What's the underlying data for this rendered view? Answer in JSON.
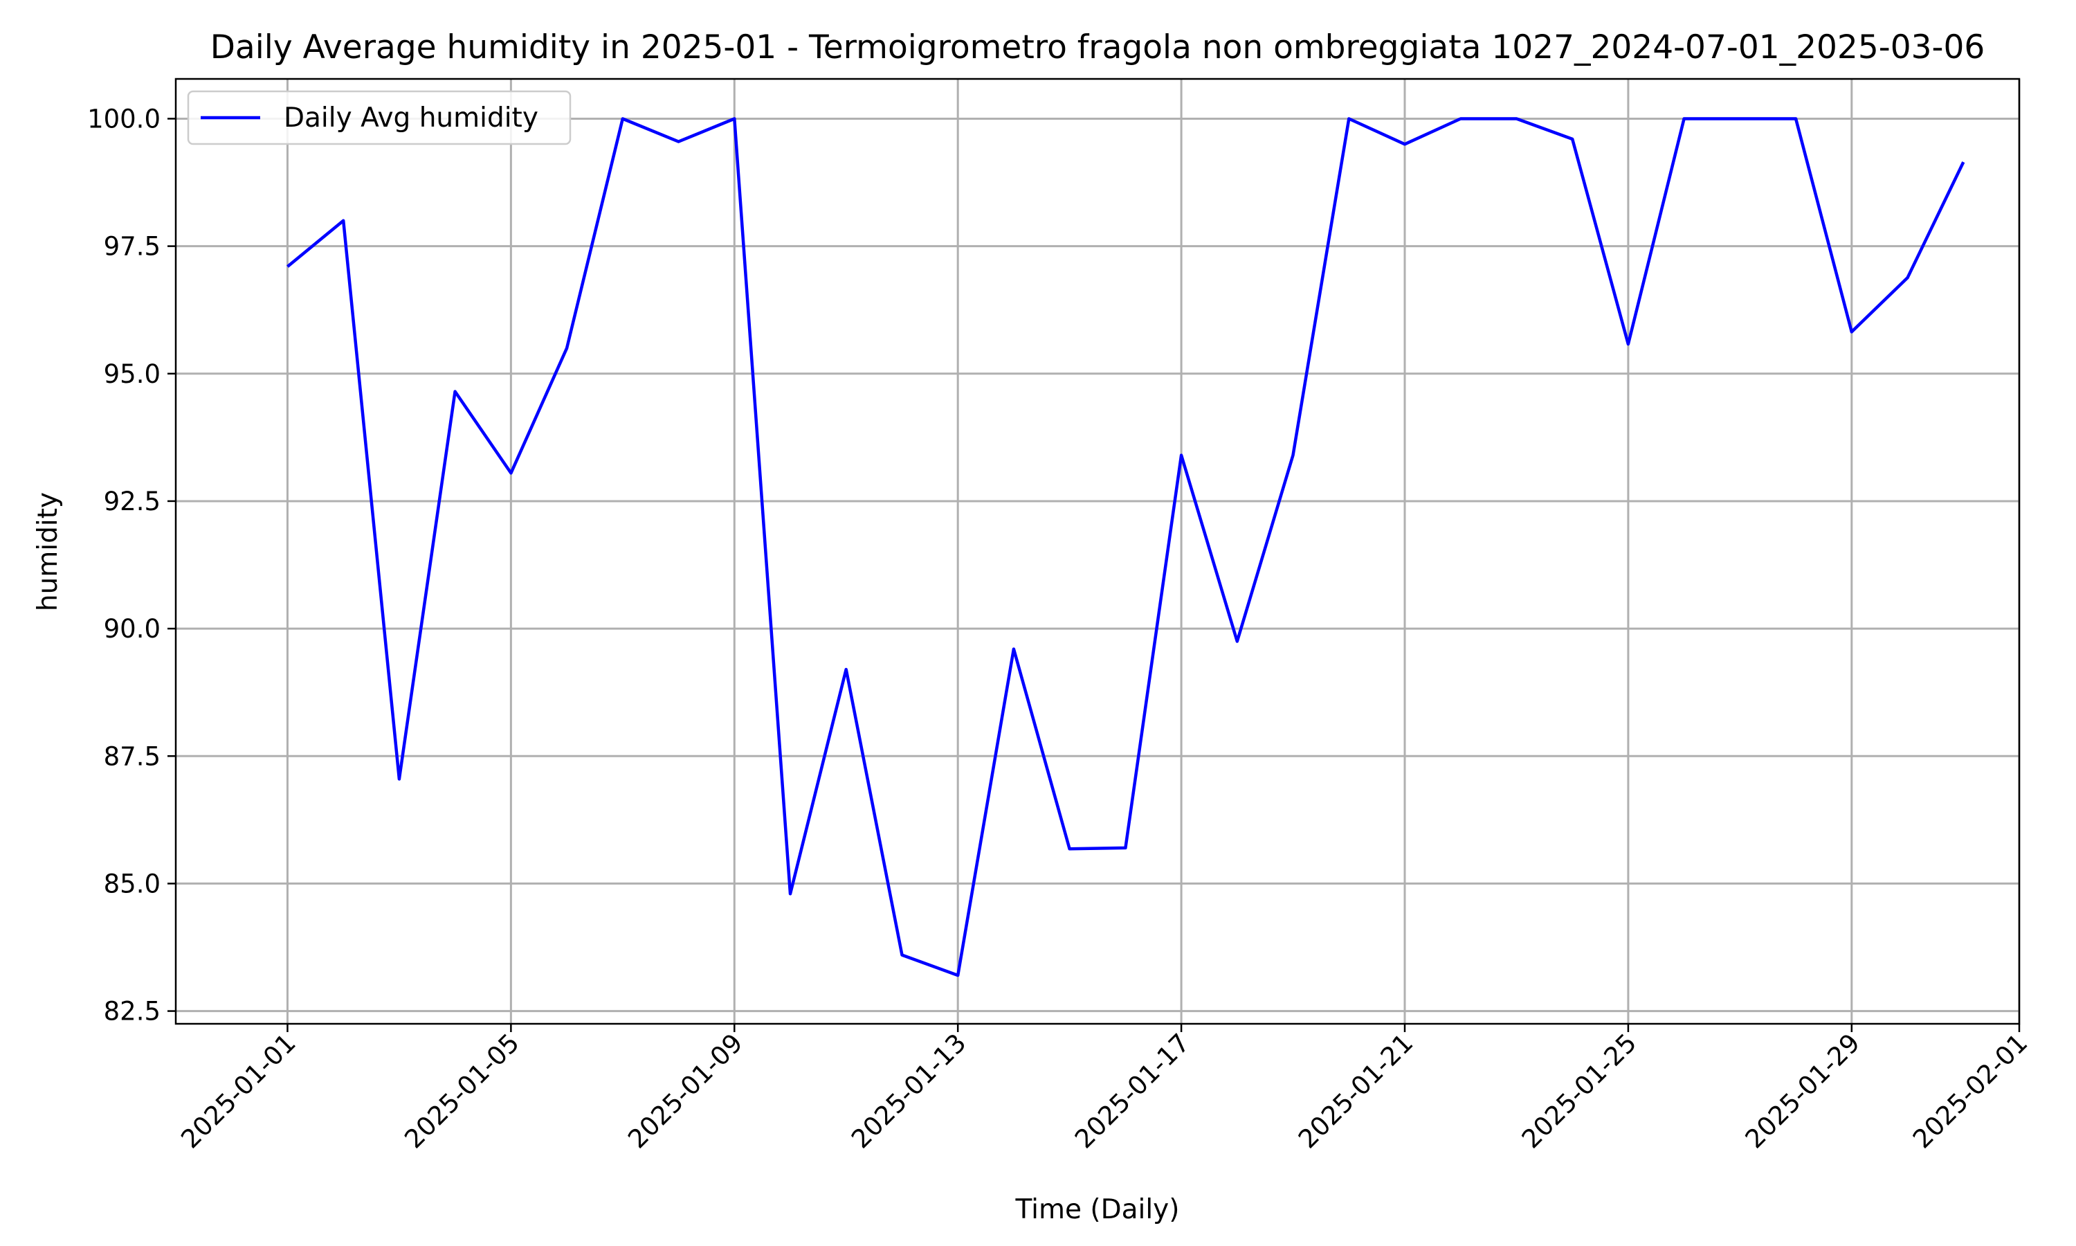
{
  "chart_data": {
    "type": "line",
    "title": "Daily Average humidity in 2025-01 - Termoigrometro fragola non ombreggiata 1027_2024-07-01_2025-03-06",
    "xlabel": "Time (Daily)",
    "ylabel": "humidity",
    "x_range": [
      "2024-12-30",
      "2025-02-01"
    ],
    "ylim": [
      82.25,
      100.78
    ],
    "y_ticks": [
      "82.5",
      "85.0",
      "87.5",
      "90.0",
      "92.5",
      "95.0",
      "97.5",
      "100.0"
    ],
    "x_ticks": [
      "2025-01-01",
      "2025-01-05",
      "2025-01-09",
      "2025-01-13",
      "2025-01-17",
      "2025-01-21",
      "2025-01-25",
      "2025-01-29",
      "2025-02-01"
    ],
    "grid": true,
    "legend_position": "top-left",
    "line_color": "#0000ff",
    "series": [
      {
        "name": "Daily Avg humidity",
        "x": [
          "2025-01-01",
          "2025-01-02",
          "2025-01-03",
          "2025-01-04",
          "2025-01-05",
          "2025-01-06",
          "2025-01-07",
          "2025-01-08",
          "2025-01-09",
          "2025-01-10",
          "2025-01-11",
          "2025-01-12",
          "2025-01-13",
          "2025-01-14",
          "2025-01-15",
          "2025-01-16",
          "2025-01-17",
          "2025-01-18",
          "2025-01-19",
          "2025-01-20",
          "2025-01-21",
          "2025-01-22",
          "2025-01-23",
          "2025-01-24",
          "2025-01-25",
          "2025-01-26",
          "2025-01-27",
          "2025-01-28",
          "2025-01-29",
          "2025-01-30",
          "2025-01-31"
        ],
        "values": [
          97.1,
          98.0,
          87.05,
          94.65,
          93.05,
          95.5,
          100.0,
          99.55,
          100.0,
          84.8,
          89.2,
          83.6,
          83.2,
          89.6,
          85.68,
          85.7,
          93.4,
          89.75,
          93.4,
          100.0,
          99.5,
          100.0,
          100.0,
          99.6,
          95.58,
          100.0,
          100.0,
          100.0,
          95.82,
          96.88,
          99.15
        ]
      }
    ]
  }
}
